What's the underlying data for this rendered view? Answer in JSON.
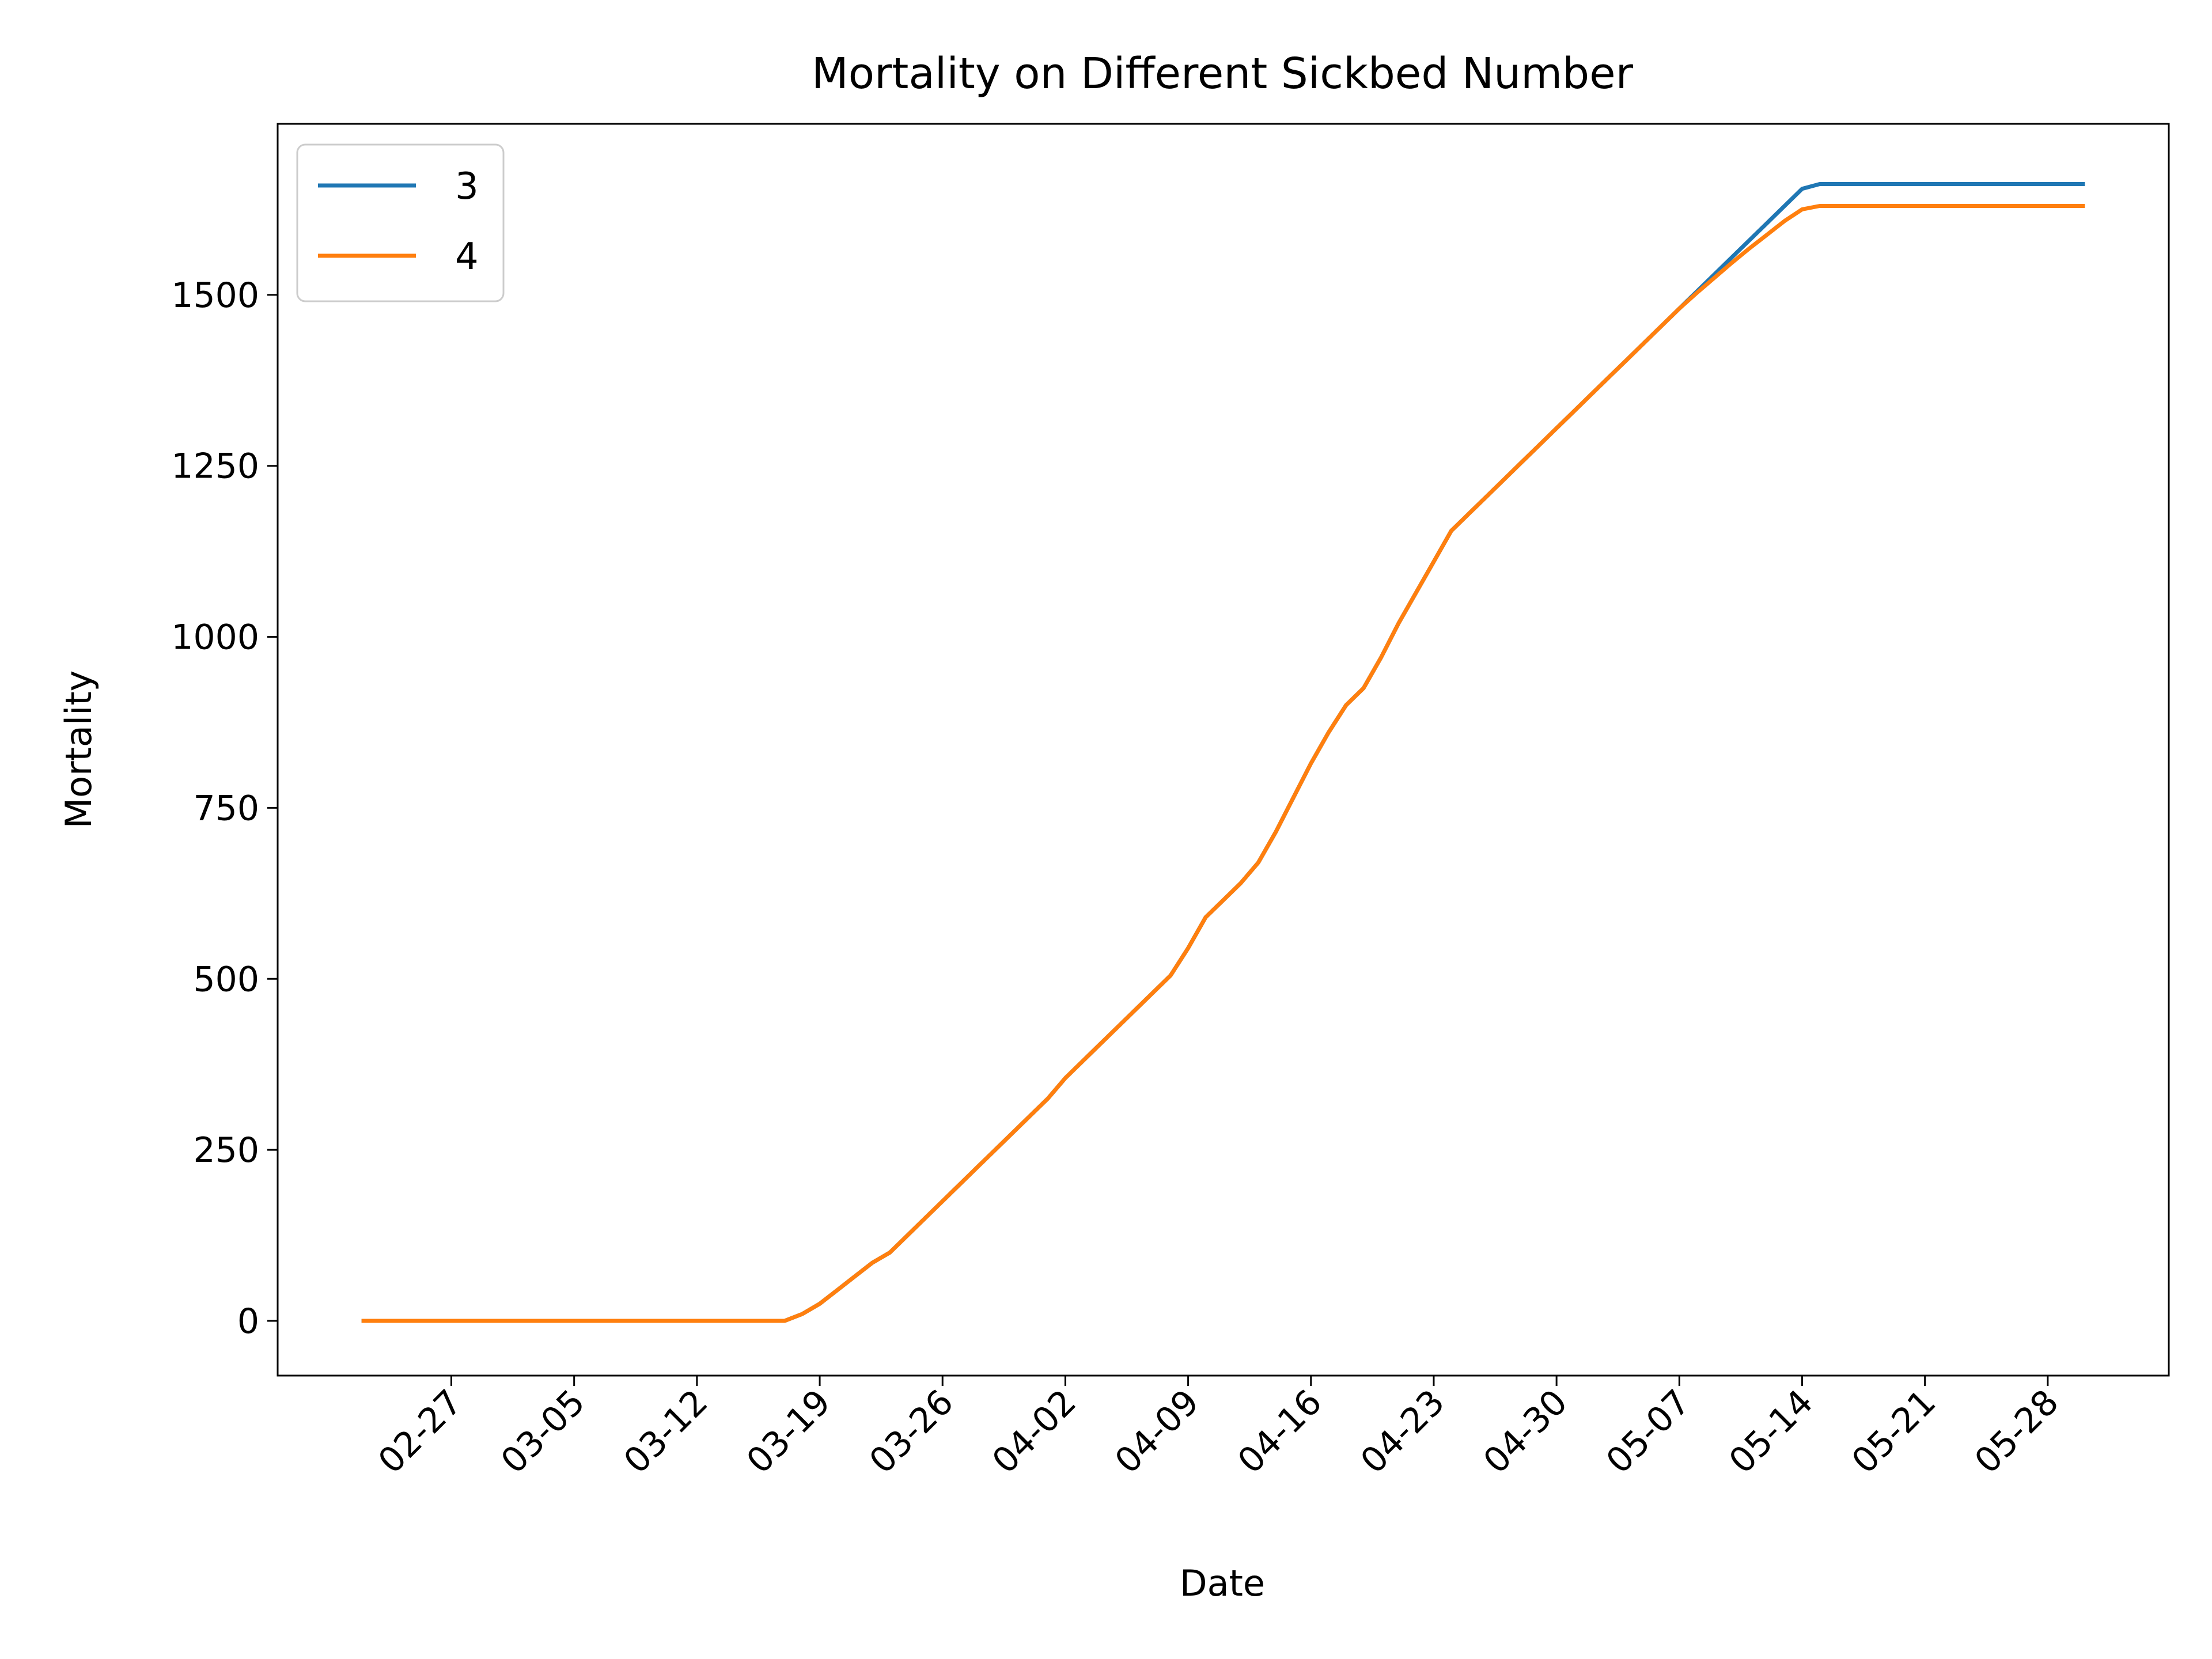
{
  "chart_data": {
    "type": "line",
    "title": "Mortality on Different Sickbed Number",
    "xlabel": "Date",
    "ylabel": "Mortality",
    "x_type": "date",
    "x_start": "02-22",
    "x_end": "05-30",
    "xticks": [
      "02-27",
      "03-05",
      "03-12",
      "03-19",
      "03-26",
      "04-02",
      "04-09",
      "04-16",
      "04-23",
      "04-30",
      "05-07",
      "05-14",
      "05-21",
      "05-28"
    ],
    "ylim": [
      -80,
      1750
    ],
    "yticks": [
      0,
      250,
      500,
      750,
      1000,
      1250,
      1500
    ],
    "grid": false,
    "legend": {
      "position": "upper-left"
    },
    "series": [
      {
        "name": "3",
        "color": "#1f77b4",
        "points": [
          [
            "02-22",
            0
          ],
          [
            "03-17",
            0
          ],
          [
            "03-18",
            10
          ],
          [
            "03-19",
            25
          ],
          [
            "03-20",
            45
          ],
          [
            "03-21",
            65
          ],
          [
            "03-22",
            85
          ],
          [
            "03-23",
            100
          ],
          [
            "03-24",
            125
          ],
          [
            "03-25",
            150
          ],
          [
            "03-26",
            175
          ],
          [
            "03-27",
            200
          ],
          [
            "03-28",
            225
          ],
          [
            "03-29",
            250
          ],
          [
            "03-30",
            275
          ],
          [
            "03-31",
            300
          ],
          [
            "04-01",
            325
          ],
          [
            "04-02",
            355
          ],
          [
            "04-03",
            380
          ],
          [
            "04-04",
            405
          ],
          [
            "04-05",
            430
          ],
          [
            "04-06",
            455
          ],
          [
            "04-07",
            480
          ],
          [
            "04-08",
            505
          ],
          [
            "04-09",
            545
          ],
          [
            "04-10",
            590
          ],
          [
            "04-11",
            615
          ],
          [
            "04-12",
            640
          ],
          [
            "04-13",
            670
          ],
          [
            "04-14",
            715
          ],
          [
            "04-15",
            765
          ],
          [
            "04-16",
            815
          ],
          [
            "04-17",
            860
          ],
          [
            "04-18",
            900
          ],
          [
            "04-19",
            925
          ],
          [
            "04-20",
            970
          ],
          [
            "04-21",
            1020
          ],
          [
            "04-22",
            1065
          ],
          [
            "04-23",
            1110
          ],
          [
            "04-24",
            1155
          ],
          [
            "04-25",
            1180
          ],
          [
            "04-26",
            1205
          ],
          [
            "04-27",
            1230
          ],
          [
            "04-28",
            1255
          ],
          [
            "04-29",
            1280
          ],
          [
            "04-30",
            1305
          ],
          [
            "05-01",
            1330
          ],
          [
            "05-02",
            1355
          ],
          [
            "05-03",
            1380
          ],
          [
            "05-04",
            1405
          ],
          [
            "05-05",
            1430
          ],
          [
            "05-06",
            1455
          ],
          [
            "05-07",
            1480
          ],
          [
            "05-08",
            1505
          ],
          [
            "05-09",
            1530
          ],
          [
            "05-10",
            1555
          ],
          [
            "05-11",
            1580
          ],
          [
            "05-12",
            1605
          ],
          [
            "05-13",
            1630
          ],
          [
            "05-14",
            1655
          ],
          [
            "05-15",
            1662
          ],
          [
            "05-30",
            1662
          ]
        ]
      },
      {
        "name": "4",
        "color": "#ff7f0e",
        "points": [
          [
            "02-22",
            0
          ],
          [
            "03-17",
            0
          ],
          [
            "03-18",
            10
          ],
          [
            "03-19",
            25
          ],
          [
            "03-20",
            45
          ],
          [
            "03-21",
            65
          ],
          [
            "03-22",
            85
          ],
          [
            "03-23",
            100
          ],
          [
            "03-24",
            125
          ],
          [
            "03-25",
            150
          ],
          [
            "03-26",
            175
          ],
          [
            "03-27",
            200
          ],
          [
            "03-28",
            225
          ],
          [
            "03-29",
            250
          ],
          [
            "03-30",
            275
          ],
          [
            "03-31",
            300
          ],
          [
            "04-01",
            325
          ],
          [
            "04-02",
            355
          ],
          [
            "04-03",
            380
          ],
          [
            "04-04",
            405
          ],
          [
            "04-05",
            430
          ],
          [
            "04-06",
            455
          ],
          [
            "04-07",
            480
          ],
          [
            "04-08",
            505
          ],
          [
            "04-09",
            545
          ],
          [
            "04-10",
            590
          ],
          [
            "04-11",
            615
          ],
          [
            "04-12",
            640
          ],
          [
            "04-13",
            670
          ],
          [
            "04-14",
            715
          ],
          [
            "04-15",
            765
          ],
          [
            "04-16",
            815
          ],
          [
            "04-17",
            860
          ],
          [
            "04-18",
            900
          ],
          [
            "04-19",
            925
          ],
          [
            "04-20",
            970
          ],
          [
            "04-21",
            1020
          ],
          [
            "04-22",
            1065
          ],
          [
            "04-23",
            1110
          ],
          [
            "04-24",
            1155
          ],
          [
            "04-25",
            1180
          ],
          [
            "04-26",
            1205
          ],
          [
            "04-27",
            1230
          ],
          [
            "04-28",
            1255
          ],
          [
            "04-29",
            1280
          ],
          [
            "04-30",
            1305
          ],
          [
            "05-01",
            1330
          ],
          [
            "05-02",
            1355
          ],
          [
            "05-03",
            1380
          ],
          [
            "05-04",
            1405
          ],
          [
            "05-05",
            1430
          ],
          [
            "05-06",
            1455
          ],
          [
            "05-07",
            1480
          ],
          [
            "05-08",
            1503
          ],
          [
            "05-09",
            1525
          ],
          [
            "05-10",
            1547
          ],
          [
            "05-11",
            1568
          ],
          [
            "05-12",
            1588
          ],
          [
            "05-13",
            1608
          ],
          [
            "05-14",
            1625
          ],
          [
            "05-15",
            1630
          ],
          [
            "05-30",
            1630
          ]
        ]
      }
    ]
  }
}
